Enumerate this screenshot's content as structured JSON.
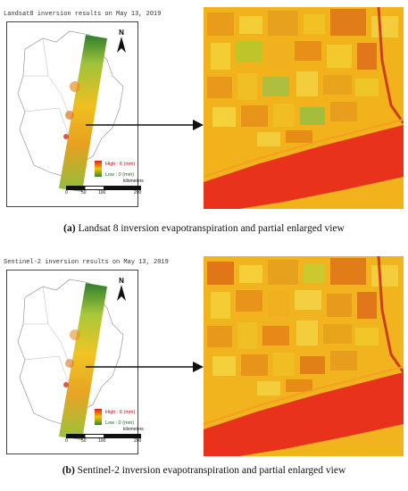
{
  "panel_a": {
    "map_title": "Landsat8 inversion results on May 13, 2019",
    "legend_high": "High : 6  (mm)",
    "legend_low": "Low : 0  (mm)",
    "north_label": "N",
    "scale_labels": [
      "0",
      "50",
      "100",
      "200"
    ],
    "scale_unit": "kilometers",
    "caption_tag": "(a)",
    "caption_text": " Landsat 8 inversion evapotranspiration and partial enlarged view"
  },
  "panel_b": {
    "map_title": "Sentinel-2 inversion results on May 13, 2019",
    "legend_high": "High : 6  (mm)",
    "legend_low": "Low : 0  (mm)",
    "north_label": "N",
    "scale_labels": [
      "0",
      "50",
      "100",
      "200"
    ],
    "scale_unit": "kilometers",
    "caption_tag": "(b)",
    "caption_text": " Sentinel-2 inversion evapotranspiration and partial enlarged view"
  },
  "colors": {
    "high": "#e0201a",
    "mid": "#f5c400",
    "low": "#2e8b2e",
    "river": "#e8321c"
  }
}
